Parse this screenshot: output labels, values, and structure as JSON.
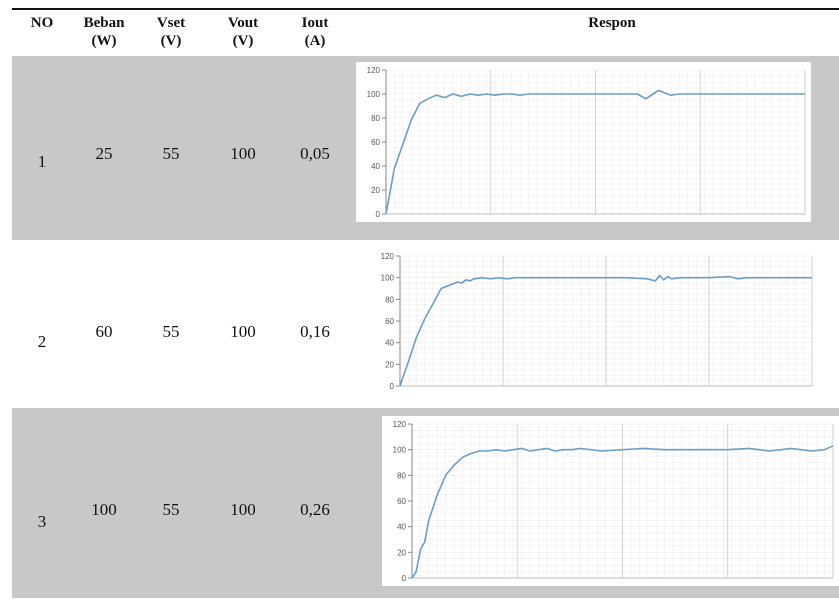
{
  "table": {
    "headers": [
      {
        "line1": "NO",
        "line2": ""
      },
      {
        "line1": "Beban",
        "line2": "(W)"
      },
      {
        "line1": "Vset",
        "line2": "(V)"
      },
      {
        "line1": "Vout",
        "line2": "(V)"
      },
      {
        "line1": "Iout",
        "line2": "(A)"
      },
      {
        "line1": "Respon",
        "line2": ""
      }
    ],
    "rows": [
      {
        "no": "1",
        "beban": "25",
        "vset": "55",
        "vout": "100",
        "iout": "0,05"
      },
      {
        "no": "2",
        "beban": "60",
        "vset": "55",
        "vout": "100",
        "iout": "0,16"
      },
      {
        "no": "3",
        "beban": "100",
        "vset": "55",
        "vout": "100",
        "iout": "0,26"
      }
    ],
    "row_shading": [
      "#c8c8c8",
      "#ffffff",
      "#c8c8c8"
    ]
  },
  "chart_data": [
    {
      "type": "line",
      "title": "",
      "xlabel": "",
      "ylabel": "",
      "ylim": [
        0,
        120
      ],
      "yticks": [
        0,
        20,
        40,
        60,
        80,
        100,
        120
      ],
      "grid": true,
      "series": [
        {
          "color": "#6a9ec8",
          "x": [
            0,
            2,
            4,
            6,
            8,
            10,
            12,
            14,
            16,
            18,
            20,
            22,
            24,
            26,
            28,
            30,
            32,
            34,
            36,
            38,
            40,
            45,
            50,
            55,
            58,
            60,
            62,
            65,
            68,
            70,
            75,
            80,
            85,
            90,
            95,
            100
          ],
          "y": [
            0,
            38,
            58,
            78,
            92,
            96,
            99,
            97,
            100,
            98,
            100,
            99,
            100,
            99,
            100,
            100,
            99,
            100,
            100,
            100,
            100,
            100,
            100,
            100,
            100,
            100,
            96,
            103,
            99,
            100,
            100,
            100,
            100,
            100,
            100,
            100
          ]
        }
      ]
    },
    {
      "type": "line",
      "title": "",
      "xlabel": "",
      "ylabel": "",
      "ylim": [
        0,
        120
      ],
      "yticks": [
        0,
        20,
        40,
        60,
        80,
        100,
        120
      ],
      "grid": true,
      "series": [
        {
          "color": "#6a9ec8",
          "x": [
            0,
            2,
            4,
            6,
            8,
            10,
            12,
            14,
            15,
            16,
            17,
            18,
            20,
            22,
            24,
            26,
            28,
            30,
            35,
            40,
            45,
            50,
            55,
            60,
            62,
            63,
            64,
            65,
            66,
            68,
            70,
            75,
            80,
            82,
            84,
            86,
            90,
            95,
            100
          ],
          "y": [
            0,
            22,
            45,
            62,
            76,
            90,
            93,
            96,
            95,
            98,
            97,
            99,
            100,
            99,
            100,
            99,
            100,
            100,
            100,
            100,
            100,
            100,
            100,
            99,
            97,
            102,
            98,
            101,
            99,
            100,
            100,
            100,
            101,
            99,
            100,
            100,
            100,
            100,
            100
          ]
        }
      ]
    },
    {
      "type": "line",
      "title": "",
      "xlabel": "",
      "ylabel": "",
      "ylim": [
        0,
        120
      ],
      "yticks": [
        0,
        20,
        40,
        60,
        80,
        100,
        120
      ],
      "grid": true,
      "series": [
        {
          "color": "#6a9ec8",
          "x": [
            0,
            1,
            2,
            3,
            4,
            6,
            8,
            10,
            12,
            14,
            16,
            18,
            20,
            22,
            24,
            26,
            28,
            30,
            32,
            34,
            36,
            38,
            40,
            45,
            50,
            55,
            60,
            65,
            70,
            75,
            80,
            85,
            90,
            95,
            98,
            100
          ],
          "y": [
            0,
            5,
            22,
            28,
            45,
            65,
            80,
            88,
            94,
            97,
            99,
            99,
            100,
            99,
            100,
            101,
            99,
            100,
            101,
            99,
            100,
            100,
            101,
            99,
            100,
            101,
            100,
            100,
            100,
            100,
            101,
            99,
            101,
            99,
            100,
            103
          ]
        }
      ]
    }
  ]
}
